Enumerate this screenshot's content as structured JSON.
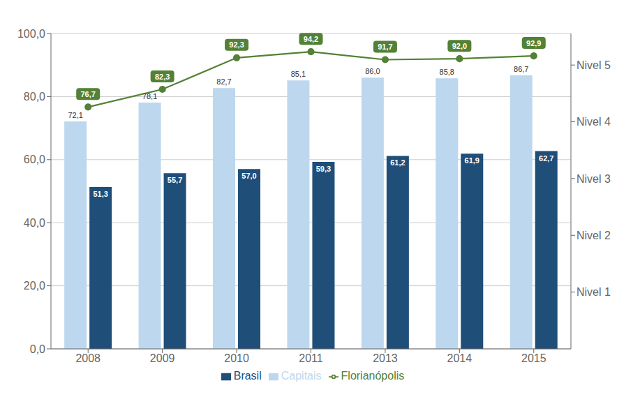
{
  "chart_data": {
    "type": "bar",
    "categories": [
      "2008",
      "2009",
      "2010",
      "2011",
      "2013",
      "2014",
      "2015"
    ],
    "series": [
      {
        "name": "Capitais",
        "type": "bar",
        "color": "#BDD7EE",
        "values": [
          72.1,
          78.1,
          82.7,
          85.1,
          86.0,
          85.8,
          86.7
        ],
        "value_labels": [
          "72,1",
          "78,1",
          "82,7",
          "85,1",
          "86,0",
          "85,8",
          "86,7"
        ]
      },
      {
        "name": "Brasil",
        "type": "bar",
        "color": "#1F4E79",
        "values": [
          51.3,
          55.7,
          57.0,
          59.3,
          61.2,
          61.9,
          62.7
        ],
        "value_labels": [
          "51,3",
          "55,7",
          "57,0",
          "59,3",
          "61,2",
          "61,9",
          "62,7"
        ]
      },
      {
        "name": "Florianópolis",
        "type": "line",
        "color": "#538135",
        "marker": "circle",
        "values": [
          76.7,
          82.3,
          92.3,
          94.2,
          91.7,
          92.0,
          92.9
        ],
        "value_labels": [
          "76,7",
          "82,3",
          "92,3",
          "94,2",
          "91,7",
          "92,0",
          "92,9"
        ]
      }
    ],
    "ylim": [
      0,
      100
    ],
    "yticks": [
      {
        "value": 0,
        "label": "0,0"
      },
      {
        "value": 20,
        "label": "20,0"
      },
      {
        "value": 40,
        "label": "40,0"
      },
      {
        "value": 60,
        "label": "60,0"
      },
      {
        "value": 80,
        "label": "80,0"
      },
      {
        "value": 100,
        "label": "100,0"
      }
    ],
    "y2lim": [
      0,
      100
    ],
    "y2ticks": [
      {
        "value": 90,
        "label": "Nivel 5"
      },
      {
        "value": 72,
        "label": "Nivel 4"
      },
      {
        "value": 54,
        "label": "Nivel 3"
      },
      {
        "value": 36,
        "label": "Nivel 2"
      },
      {
        "value": 18,
        "label": "Nivel 1"
      }
    ],
    "grid": true,
    "legend": "bottom",
    "data_labels": true
  }
}
